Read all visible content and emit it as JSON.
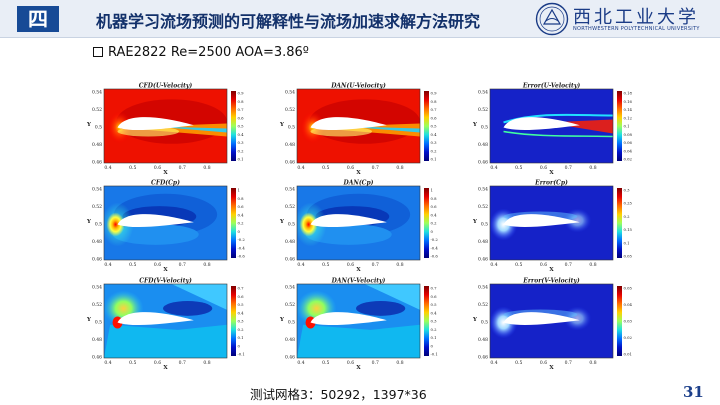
{
  "header": {
    "section": "四",
    "title": "机器学习流场预测的可解释性与流场加速求解方法研究"
  },
  "logo": {
    "name": "西北工业大学",
    "english": "NORTHWESTERN POLYTECHNICAL UNIVERSITY",
    "icon": "university-seal-icon"
  },
  "case_label": "RAE2822 Re=2500 AOA=3.86º",
  "figure": {
    "titles": [
      "CFD(U-Velocity)",
      "DAN(U-Velocity)",
      "Error(U-Velocity)",
      "CFD(Cp)",
      "DAN(Cp)",
      "Error(Cp)",
      "CFD(V-Velocity)",
      "DAN(V-Velocity)",
      "Error(V-Velocity)"
    ],
    "x_label": "X",
    "y_label": "Y",
    "x_ticks": [
      "0.4",
      "0.5",
      "0.6",
      "0.7",
      "0.8"
    ],
    "y_ticks": [
      "0.54",
      "0.52",
      "0.5",
      "0.48",
      "0.46"
    ],
    "x_range": [
      0.4,
      0.85
    ],
    "y_range": [
      0.46,
      0.54
    ],
    "colorbar_ticks": {
      "u": [
        "0.9",
        "0.8",
        "0.7",
        "0.6",
        "0.5",
        "0.4",
        "0.3",
        "0.2",
        "0.1"
      ],
      "u_err": [
        "0.18",
        "0.16",
        "0.14",
        "0.12",
        "0.1",
        "0.08",
        "0.06",
        "0.04",
        "0.02"
      ],
      "cp": [
        "1",
        "0.8",
        "0.6",
        "0.4",
        "0.2",
        "0",
        "-0.2",
        "-0.4",
        "-0.6"
      ],
      "cp_err": [
        "0.3",
        "0.25",
        "0.2",
        "0.15",
        "0.1",
        "0.05"
      ],
      "v": [
        "0.7",
        "0.6",
        "0.5",
        "0.4",
        "0.3",
        "0.2",
        "0.1",
        "0",
        "-0.1"
      ],
      "v_err": [
        "0.05",
        "0.04",
        "0.03",
        "0.02",
        "0.01"
      ]
    }
  },
  "caption": "测试网格3：50292，1397*36",
  "page_number": "31"
}
